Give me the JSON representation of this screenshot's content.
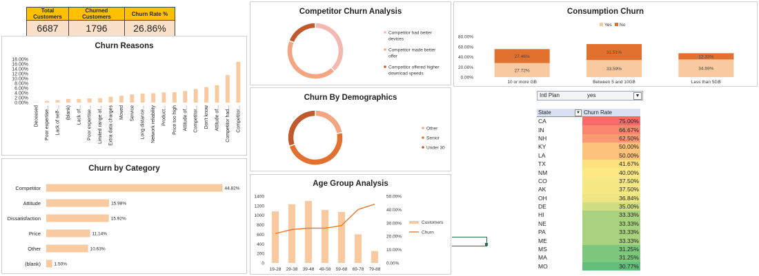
{
  "kpis": {
    "headers": [
      "Total Customers",
      "Churned Customers",
      "Churn Rate %"
    ],
    "values": [
      "6687",
      "1796",
      "26.86%"
    ]
  },
  "titles": {
    "churn_reasons": "Churn Reasons",
    "churn_by_category": "Churn by Category",
    "competitor_churn": "Competitor Churn Analysis",
    "demographics": "Churn By Demographics",
    "age_group": "Age Group Analysis",
    "consumption": "Consumption Churn"
  },
  "filter": {
    "label": "Intl Plan",
    "value": "yes",
    "icon": "filter-icon"
  },
  "state_table": {
    "headers": [
      "State",
      "Churn Rate"
    ],
    "rows": [
      {
        "state": "CA",
        "rate": "75.00%",
        "color": "#f8696b"
      },
      {
        "state": "IN",
        "rate": "66.67%",
        "color": "#f9866f"
      },
      {
        "state": "NH",
        "rate": "62.50%",
        "color": "#fa9a73"
      },
      {
        "state": "KY",
        "rate": "50.00%",
        "color": "#fcc17b"
      },
      {
        "state": "LA",
        "rate": "50.00%",
        "color": "#fcc17b"
      },
      {
        "state": "TX",
        "rate": "41.67%",
        "color": "#fee17f"
      },
      {
        "state": "NM",
        "rate": "40.00%",
        "color": "#fde883"
      },
      {
        "state": "CO",
        "rate": "37.50%",
        "color": "#f6e883"
      },
      {
        "state": "AK",
        "rate": "37.50%",
        "color": "#f6e883"
      },
      {
        "state": "OH",
        "rate": "36.84%",
        "color": "#ede683"
      },
      {
        "state": "DE",
        "rate": "35.00%",
        "color": "#cfde82"
      },
      {
        "state": "HI",
        "rate": "33.33%",
        "color": "#a9d27f"
      },
      {
        "state": "NE",
        "rate": "33.33%",
        "color": "#a9d27f"
      },
      {
        "state": "PA",
        "rate": "33.33%",
        "color": "#a9d27f"
      },
      {
        "state": "ME",
        "rate": "33.33%",
        "color": "#a9d27f"
      },
      {
        "state": "MS",
        "rate": "31.25%",
        "color": "#7bc77c"
      },
      {
        "state": "MA",
        "rate": "31.25%",
        "color": "#7bc77c"
      },
      {
        "state": "MO",
        "rate": "30.77%",
        "color": "#63be7b"
      }
    ]
  },
  "colors": {
    "peach": "#f9c9a0",
    "orange": "#e2712f",
    "salmon": "#f4a582",
    "pink": "#f4b8b0",
    "dark": "#c0592d",
    "line": "#ed7d31"
  },
  "chart_data": [
    {
      "id": "churn_reasons",
      "type": "bar",
      "title": "Churn Reasons",
      "categories": [
        "Deceased",
        "Poor expertise...",
        "Lack of self-...",
        "(blank)",
        "Lack of...",
        "Poor expertise...",
        "Limited range of...",
        "Extra data charges",
        "Moved",
        "Service",
        "Long distance...",
        "Network reliability",
        "Product...",
        "Price too high",
        "Attitude of...",
        "Competitor...",
        "Don't know",
        "Attitude of...",
        "Competitor had...",
        "Competitor..."
      ],
      "values": [
        0.1,
        0.7,
        1.0,
        1.5,
        1.5,
        1.7,
        1.8,
        2.4,
        2.8,
        3.4,
        3.7,
        3.9,
        4.2,
        4.3,
        4.8,
        5.6,
        6.4,
        7.2,
        11.4,
        16.9
      ],
      "yticks": [
        "0.00%",
        "2.00%",
        "4.00%",
        "6.00%",
        "8.00%",
        "10.00%",
        "12.00%",
        "14.00%",
        "16.00%",
        "18.00%"
      ],
      "ylim": [
        0,
        18
      ]
    },
    {
      "id": "churn_by_category",
      "type": "bar",
      "orientation": "horizontal",
      "title": "Churn by Category",
      "categories": [
        "Competitor",
        "Attitude",
        "Dissatisfaction",
        "Price",
        "Other",
        "(blank)"
      ],
      "values": [
        44.82,
        15.98,
        15.92,
        11.14,
        10.63,
        1.5
      ],
      "labels": [
        "44.82%",
        "15.98%",
        "15.92%",
        "11.14%",
        "10.63%",
        "1.50%"
      ]
    },
    {
      "id": "competitor_churn",
      "type": "pie",
      "title": "Competitor Churn Analysis",
      "labels": [
        "Competitor had better devices",
        "Competitor made better offer",
        "Competitor offered higher download speeds"
      ],
      "legend_lines": [
        [
          "Competitor had better",
          "devices"
        ],
        [
          "Competitor made better",
          "offer"
        ],
        [
          "Competitor offered higher",
          "download speeds"
        ]
      ],
      "values": [
        38,
        43,
        19
      ]
    },
    {
      "id": "demographics",
      "type": "pie",
      "title": "Churn By Demographics",
      "labels": [
        "Other",
        "Senior",
        "Under 30"
      ],
      "values": [
        22,
        48,
        30
      ]
    },
    {
      "id": "age_group",
      "type": "bar",
      "title": "Age Group Analysis",
      "categories": [
        "19-28",
        "29-38",
        "39-48",
        "49-58",
        "59-68",
        "69-78",
        "79-88"
      ],
      "series": [
        {
          "name": "Customers",
          "values": [
            1080,
            1230,
            1300,
            1110,
            1070,
            600,
            250
          ]
        },
        {
          "name": "Churn",
          "values": [
            22,
            25,
            26,
            26,
            28,
            40,
            44
          ]
        }
      ],
      "yticks_left": [
        "0",
        "200",
        "400",
        "600",
        "800",
        "1000",
        "1200",
        "1400"
      ],
      "yticks_right": [
        "0.00%",
        "10.00%",
        "20.00%",
        "30.00%",
        "40.00%",
        "50.00%"
      ],
      "ylim_left": [
        0,
        1400
      ],
      "ylim_right": [
        0,
        50
      ]
    },
    {
      "id": "consumption",
      "type": "bar",
      "stacked": true,
      "title": "Consumption Churn",
      "categories": [
        "10 or more GB",
        "Between 5 and 10GB",
        "Less than 5GB"
      ],
      "series": [
        {
          "name": "Yes",
          "values": [
            27.72,
            33.59,
            34.69
          ],
          "labels": [
            "27.72%",
            "33.59%",
            "34.69%"
          ]
        },
        {
          "name": "No",
          "values": [
            27.46,
            31.51,
            12.33
          ],
          "labels": [
            "27.46%",
            "31.51%",
            "12.33%"
          ]
        }
      ],
      "yticks": [
        "0.00%",
        "20.00%",
        "40.00%",
        "60.00%",
        "80.00%"
      ],
      "ylim": [
        0,
        80
      ]
    }
  ]
}
